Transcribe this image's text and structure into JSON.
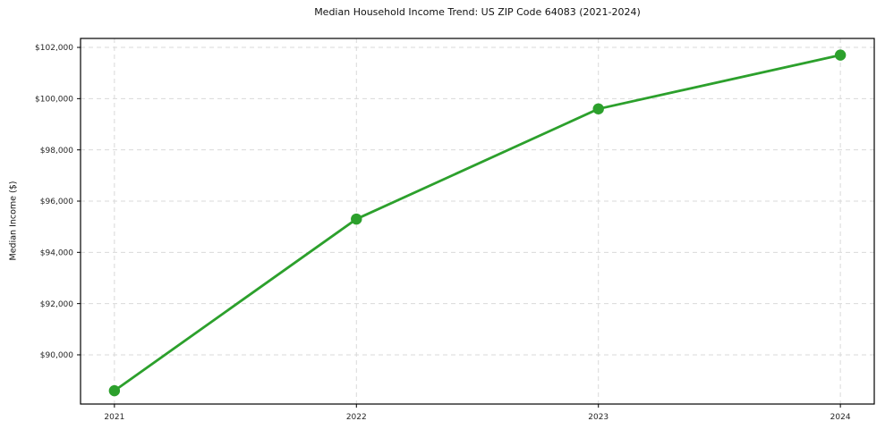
{
  "chart_data": {
    "type": "line",
    "title": "Median Household Income Trend: US ZIP Code 64083 (2021-2024)",
    "xlabel": "",
    "ylabel": "Median Income ($)",
    "x": [
      2021,
      2022,
      2023,
      2024
    ],
    "x_tick_labels": [
      "2021",
      "2022",
      "2023",
      "2024"
    ],
    "series": [
      {
        "name": "median-household-income",
        "values": [
          88600,
          95300,
          99600,
          101700
        ]
      }
    ],
    "y_ticks": [
      90000,
      92000,
      94000,
      96000,
      98000,
      100000,
      102000
    ],
    "y_tick_labels": [
      "$90,000",
      "$92,000",
      "$94,000",
      "$96,000",
      "$98,000",
      "$100,000",
      "$102,000"
    ],
    "xlim": [
      2020.86,
      2024.14
    ],
    "ylim": [
      88080,
      102350
    ],
    "grid": true,
    "grid_style": "dashed",
    "legend": false,
    "marker": "circle",
    "line_color": "#2ca02c",
    "grid_color": "#d9d9d9",
    "axis_color": "#000000",
    "text_color": "#262626",
    "background_color": "#ffffff"
  }
}
